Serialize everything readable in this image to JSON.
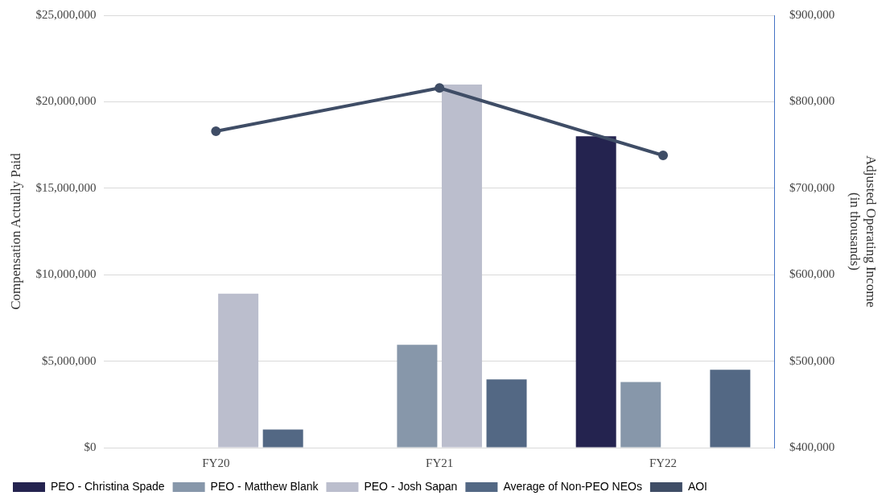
{
  "chart_data": {
    "type": "bar",
    "ylabel": "Compensation Actually Paid",
    "y2label": "Adjusted Operating Income\n(in thousands)",
    "categories": [
      "FY20",
      "FY21",
      "FY22"
    ],
    "series": [
      {
        "name": "PEO - Christina Spade",
        "color": "#24234f",
        "values": [
          null,
          null,
          18000000
        ]
      },
      {
        "name": "PEO - Matthew Blank",
        "color": "#8797aa",
        "values": [
          null,
          5950000,
          3800000
        ]
      },
      {
        "name": "PEO - Josh Sapan",
        "color": "#bbbecd",
        "values": [
          8900000,
          21000000,
          null
        ]
      },
      {
        "name": "Average of Non-PEO NEOs",
        "color": "#536884",
        "values": [
          1050000,
          3950000,
          4500000
        ]
      },
      {
        "name": "AOI",
        "type": "line",
        "axis": "y2",
        "color": "#3f4d66",
        "values": [
          766000,
          816000,
          738000
        ]
      }
    ],
    "ylim": [
      0,
      25000000
    ],
    "yticks": [
      {
        "value": 0,
        "label": "$0"
      },
      {
        "value": 5000000,
        "label": "$5,000,000"
      },
      {
        "value": 10000000,
        "label": "$10,000,000"
      },
      {
        "value": 15000000,
        "label": "$15,000,000"
      },
      {
        "value": 20000000,
        "label": "$20,000,000"
      },
      {
        "value": 25000000,
        "label": "$25,000,000"
      }
    ],
    "y2lim": [
      400000,
      900000
    ],
    "y2ticks": [
      {
        "value": 400000,
        "label": "$400,000"
      },
      {
        "value": 500000,
        "label": "$500,000"
      },
      {
        "value": 600000,
        "label": "$600,000"
      },
      {
        "value": 700000,
        "label": "$700,000"
      },
      {
        "value": 800000,
        "label": "$800,000"
      },
      {
        "value": 900000,
        "label": "$900,000"
      }
    ],
    "grid": "y",
    "legend": "bottom",
    "marker": "circle"
  }
}
